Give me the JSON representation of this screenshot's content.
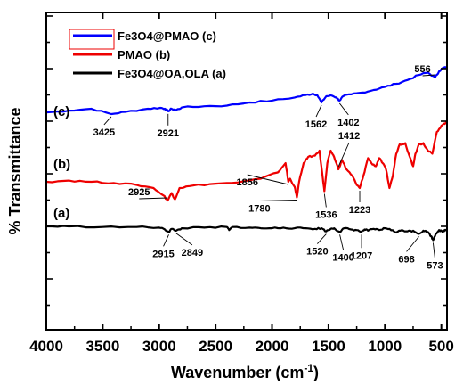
{
  "chart_data": {
    "type": "line",
    "title": "",
    "xlabel": "Wavenumber (cm",
    "xlabel_sup": "-1",
    "xlabel_close": ")",
    "ylabel": "% Transmittance",
    "xlim": [
      4000,
      450
    ],
    "x_ticks": [
      4000,
      3500,
      3000,
      2500,
      2000,
      1500,
      1000,
      500
    ],
    "grid": false,
    "legend_position": "top-left",
    "series": [
      {
        "name": "Fe3O4@PMAO (c)",
        "curve_label": "(c)",
        "color": "#0000ff",
        "points": [
          [
            4000,
            0.14
          ],
          [
            3800,
            0.17
          ],
          [
            3600,
            0.2
          ],
          [
            3425,
            0.115
          ],
          [
            3300,
            0.15
          ],
          [
            3100,
            0.2
          ],
          [
            2990,
            0.215
          ],
          [
            2950,
            0.2
          ],
          [
            2921,
            0.16
          ],
          [
            2890,
            0.2
          ],
          [
            2849,
            0.18
          ],
          [
            2800,
            0.22
          ],
          [
            2600,
            0.24
          ],
          [
            2400,
            0.25
          ],
          [
            2200,
            0.3
          ],
          [
            2000,
            0.33
          ],
          [
            1800,
            0.38
          ],
          [
            1700,
            0.42
          ],
          [
            1640,
            0.44
          ],
          [
            1600,
            0.42
          ],
          [
            1562,
            0.3
          ],
          [
            1520,
            0.4
          ],
          [
            1470,
            0.41
          ],
          [
            1430,
            0.38
          ],
          [
            1402,
            0.33
          ],
          [
            1370,
            0.4
          ],
          [
            1300,
            0.43
          ],
          [
            1200,
            0.46
          ],
          [
            1100,
            0.5
          ],
          [
            1000,
            0.55
          ],
          [
            900,
            0.6
          ],
          [
            800,
            0.66
          ],
          [
            700,
            0.74
          ],
          [
            620,
            0.78
          ],
          [
            556,
            0.7
          ],
          [
            520,
            0.8
          ],
          [
            480,
            0.86
          ],
          [
            450,
            0.86
          ]
        ]
      },
      {
        "name": "PMAO (b)",
        "curve_label": "(b)",
        "color": "#ee0000",
        "points": [
          [
            4000,
            0.0
          ],
          [
            3800,
            0.02
          ],
          [
            3600,
            0.0
          ],
          [
            3400,
            -0.02
          ],
          [
            3200,
            -0.05
          ],
          [
            3050,
            -0.1
          ],
          [
            2960,
            -0.22
          ],
          [
            2925,
            -0.3
          ],
          [
            2890,
            -0.18
          ],
          [
            2860,
            -0.28
          ],
          [
            2820,
            -0.1
          ],
          [
            2700,
            -0.06
          ],
          [
            2500,
            -0.03
          ],
          [
            2300,
            -0.01
          ],
          [
            2100,
            0.05
          ],
          [
            1950,
            0.15
          ],
          [
            1880,
            0.3
          ],
          [
            1856,
            0.0
          ],
          [
            1840,
            0.05
          ],
          [
            1800,
            -0.08
          ],
          [
            1780,
            -0.25
          ],
          [
            1760,
            0.0
          ],
          [
            1720,
            0.3
          ],
          [
            1680,
            0.4
          ],
          [
            1620,
            0.42
          ],
          [
            1580,
            0.5
          ],
          [
            1550,
            0.05
          ],
          [
            1536,
            -0.15
          ],
          [
            1510,
            0.3
          ],
          [
            1480,
            0.5
          ],
          [
            1450,
            0.4
          ],
          [
            1412,
            0.2
          ],
          [
            1380,
            0.35
          ],
          [
            1340,
            0.2
          ],
          [
            1290,
            0.1
          ],
          [
            1250,
            -0.05
          ],
          [
            1223,
            -0.1
          ],
          [
            1190,
            0.1
          ],
          [
            1150,
            0.38
          ],
          [
            1120,
            0.3
          ],
          [
            1080,
            0.25
          ],
          [
            1050,
            0.38
          ],
          [
            1020,
            0.3
          ],
          [
            990,
            0.2
          ],
          [
            960,
            -0.1
          ],
          [
            930,
            0.1
          ],
          [
            900,
            0.45
          ],
          [
            870,
            0.6
          ],
          [
            820,
            0.62
          ],
          [
            780,
            0.4
          ],
          [
            750,
            0.25
          ],
          [
            730,
            0.45
          ],
          [
            700,
            0.6
          ],
          [
            660,
            0.62
          ],
          [
            620,
            0.5
          ],
          [
            580,
            0.45
          ],
          [
            540,
            0.8
          ],
          [
            500,
            0.9
          ],
          [
            460,
            0.95
          ],
          [
            450,
            0.95
          ]
        ]
      },
      {
        "name": "Fe3O4@OA,OLA (a)",
        "curve_label": "(a)",
        "color": "#000000",
        "points": [
          [
            4000,
            0.0
          ],
          [
            3800,
            0.0
          ],
          [
            3500,
            -0.01
          ],
          [
            3200,
            -0.01
          ],
          [
            3000,
            -0.02
          ],
          [
            2950,
            -0.05
          ],
          [
            2915,
            -0.09
          ],
          [
            2890,
            -0.04
          ],
          [
            2849,
            -0.07
          ],
          [
            2800,
            -0.03
          ],
          [
            2600,
            -0.02
          ],
          [
            2400,
            -0.01
          ],
          [
            2380,
            -0.06
          ],
          [
            2350,
            -0.01
          ],
          [
            2200,
            -0.02
          ],
          [
            2100,
            -0.03
          ],
          [
            2000,
            -0.03
          ],
          [
            1900,
            -0.02
          ],
          [
            1800,
            -0.03
          ],
          [
            1700,
            -0.03
          ],
          [
            1620,
            -0.04
          ],
          [
            1560,
            -0.03
          ],
          [
            1520,
            -0.08
          ],
          [
            1480,
            -0.04
          ],
          [
            1450,
            -0.03
          ],
          [
            1400,
            -0.09
          ],
          [
            1360,
            -0.03
          ],
          [
            1300,
            -0.05
          ],
          [
            1250,
            -0.06
          ],
          [
            1207,
            -0.09
          ],
          [
            1180,
            -0.05
          ],
          [
            1150,
            -0.07
          ],
          [
            1100,
            -0.04
          ],
          [
            1050,
            -0.06
          ],
          [
            1000,
            -0.03
          ],
          [
            960,
            -0.04
          ],
          [
            900,
            -0.1
          ],
          [
            850,
            -0.06
          ],
          [
            800,
            -0.08
          ],
          [
            750,
            -0.07
          ],
          [
            698,
            -0.12
          ],
          [
            660,
            -0.07
          ],
          [
            620,
            -0.09
          ],
          [
            590,
            -0.16
          ],
          [
            573,
            -0.22
          ],
          [
            550,
            -0.12
          ],
          [
            520,
            -0.06
          ],
          [
            490,
            -0.09
          ],
          [
            470,
            -0.06
          ],
          [
            450,
            -0.06
          ]
        ]
      }
    ],
    "annotations": [
      {
        "label": "3425",
        "series": 0,
        "x": 3425
      },
      {
        "label": "2921",
        "series": 0,
        "x": 2921
      },
      {
        "label": "1562",
        "series": 0,
        "x": 1562
      },
      {
        "label": "1402",
        "series": 0,
        "x": 1402
      },
      {
        "label": "556",
        "series": 0,
        "x": 556
      },
      {
        "label": "2925",
        "series": 1,
        "x": 2925
      },
      {
        "label": "1856",
        "series": 1,
        "x": 1856
      },
      {
        "label": "1780",
        "series": 1,
        "x": 1780
      },
      {
        "label": "1536",
        "series": 1,
        "x": 1536
      },
      {
        "label": "1412",
        "series": 1,
        "x": 1412
      },
      {
        "label": "1223",
        "series": 1,
        "x": 1223
      },
      {
        "label": "2915",
        "series": 2,
        "x": 2915
      },
      {
        "label": "2849",
        "series": 2,
        "x": 2849
      },
      {
        "label": "1520",
        "series": 2,
        "x": 1520
      },
      {
        "label": "1400",
        "series": 2,
        "x": 1400
      },
      {
        "label": "1207",
        "series": 2,
        "x": 1207
      },
      {
        "label": "698",
        "series": 2,
        "x": 698
      },
      {
        "label": "573",
        "series": 2,
        "x": 573
      }
    ]
  }
}
